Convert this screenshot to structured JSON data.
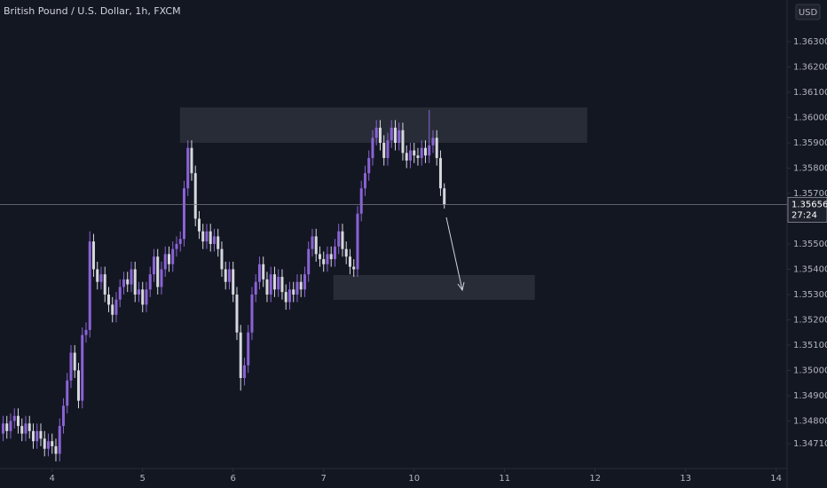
{
  "chart_data": {
    "type": "candlestick",
    "title": "British Pound / U.S. Dollar, 1h, FXCM",
    "currency": "USD",
    "countdown": "27:24",
    "last_price": 1.35656,
    "up_color": "#8b63d6",
    "down_color": "#d6d8de",
    "xlim": [
      -0.82,
      207.9
    ],
    "ylim": [
      1.34612,
      1.36465
    ],
    "xticks": [
      {
        "value": 13,
        "label": "4"
      },
      {
        "value": 37,
        "label": "5"
      },
      {
        "value": 61,
        "label": "6"
      },
      {
        "value": 85,
        "label": "7"
      },
      {
        "value": 109,
        "label": "10"
      },
      {
        "value": 133,
        "label": "11"
      },
      {
        "value": 157,
        "label": "12"
      },
      {
        "value": 181,
        "label": "13"
      },
      {
        "value": 205,
        "label": "14"
      }
    ],
    "yticks": [
      {
        "value": 1.363,
        "label": "1.36300"
      },
      {
        "value": 1.362,
        "label": "1.36200"
      },
      {
        "value": 1.361,
        "label": "1.36100"
      },
      {
        "value": 1.36,
        "label": "1.36000"
      },
      {
        "value": 1.359,
        "label": "1.35900"
      },
      {
        "value": 1.358,
        "label": "1.35800"
      },
      {
        "value": 1.357,
        "label": "1.35700"
      },
      {
        "value": 1.355,
        "label": "1.35500"
      },
      {
        "value": 1.354,
        "label": "1.35400"
      },
      {
        "value": 1.353,
        "label": "1.35300"
      },
      {
        "value": 1.352,
        "label": "1.35200"
      },
      {
        "value": 1.351,
        "label": "1.35100"
      },
      {
        "value": 1.35,
        "label": "1.35000"
      },
      {
        "value": 1.349,
        "label": "1.34900"
      },
      {
        "value": 1.348,
        "label": "1.34800"
      },
      {
        "value": 1.3471,
        "label": "1.34710"
      }
    ],
    "zones": [
      {
        "from": 46.9,
        "to": 154.9,
        "high": 1.3604,
        "low": 1.359
      },
      {
        "from": 87.6,
        "to": 141,
        "high": 1.35377,
        "low": 1.35279
      }
    ],
    "open": [
      1.3475,
      1.3479,
      1.3476,
      1.348,
      1.3482,
      1.3478,
      1.3475,
      1.3479,
      1.3476,
      1.3472,
      1.3476,
      1.3473,
      1.3469,
      1.3472,
      1.347,
      1.3467,
      1.3478,
      1.3486,
      1.3496,
      1.3507,
      1.35,
      1.3488,
      1.3514,
      1.3516,
      1.3551,
      1.354,
      1.3535,
      1.3538,
      1.353,
      1.3526,
      1.3522,
      1.3528,
      1.3533,
      1.3536,
      1.3534,
      1.354,
      1.353,
      1.3532,
      1.3526,
      1.3532,
      1.3538,
      1.3545,
      1.3533,
      1.354,
      1.3546,
      1.3542,
      1.3548,
      1.355,
      1.3552,
      1.3572,
      1.3588,
      1.3578,
      1.356,
      1.3555,
      1.3551,
      1.3555,
      1.355,
      1.3553,
      1.3548,
      1.354,
      1.3535,
      1.354,
      1.353,
      1.3515,
      1.3497,
      1.3502,
      1.3515,
      1.353,
      1.3535,
      1.3542,
      1.3536,
      1.353,
      1.3538,
      1.3532,
      1.3537,
      1.3531,
      1.3527,
      1.3532,
      1.353,
      1.3535,
      1.3532,
      1.3538,
      1.3548,
      1.3553,
      1.3546,
      1.3544,
      1.3542,
      1.3546,
      1.3544,
      1.3549,
      1.3555,
      1.3548,
      1.3545,
      1.3541,
      1.354,
      1.3562,
      1.3572,
      1.3578,
      1.3584,
      1.3592,
      1.3596,
      1.359,
      1.3584,
      1.3591,
      1.3596,
      1.359,
      1.3595,
      1.3586,
      1.3583,
      1.3587,
      1.3585,
      1.3584,
      1.3588,
      1.3585,
      1.3589,
      1.3592,
      1.3584,
      1.3572
    ],
    "high": [
      1.3482,
      1.3482,
      1.3483,
      1.3485,
      1.3485,
      1.3481,
      1.3482,
      1.3482,
      1.3479,
      1.3479,
      1.3479,
      1.3476,
      1.3475,
      1.3475,
      1.3473,
      1.3481,
      1.3489,
      1.3499,
      1.351,
      1.351,
      1.3503,
      1.3517,
      1.3519,
      1.3555,
      1.3554,
      1.3543,
      1.3541,
      1.3541,
      1.3533,
      1.3529,
      1.3531,
      1.3536,
      1.3539,
      1.3539,
      1.3543,
      1.3543,
      1.3535,
      1.3535,
      1.3535,
      1.3541,
      1.3548,
      1.3548,
      1.3543,
      1.3549,
      1.3549,
      1.3551,
      1.3553,
      1.3555,
      1.3575,
      1.3591,
      1.3591,
      1.3581,
      1.3563,
      1.3558,
      1.3558,
      1.3558,
      1.3556,
      1.3556,
      1.3551,
      1.3543,
      1.3543,
      1.3543,
      1.3533,
      1.3518,
      1.3505,
      1.3518,
      1.3533,
      1.3538,
      1.3545,
      1.3545,
      1.3539,
      1.3541,
      1.3541,
      1.354,
      1.354,
      1.3534,
      1.3535,
      1.3535,
      1.3538,
      1.3538,
      1.3541,
      1.3551,
      1.3556,
      1.3556,
      1.3549,
      1.3547,
      1.3549,
      1.3549,
      1.3552,
      1.3558,
      1.3558,
      1.3551,
      1.3548,
      1.3544,
      1.3565,
      1.3575,
      1.3581,
      1.3587,
      1.3595,
      1.3599,
      1.3599,
      1.3593,
      1.3594,
      1.3599,
      1.3599,
      1.3598,
      1.3598,
      1.3589,
      1.359,
      1.359,
      1.3588,
      1.3591,
      1.3591,
      1.3603,
      1.3595,
      1.3595,
      1.3587,
      1.3574
    ],
    "low": [
      1.3472,
      1.3473,
      1.3473,
      1.3477,
      1.3475,
      1.3472,
      1.3472,
      1.3473,
      1.3469,
      1.3469,
      1.347,
      1.3466,
      1.3466,
      1.3467,
      1.3464,
      1.3464,
      1.3475,
      1.3483,
      1.3493,
      1.3497,
      1.3485,
      1.3485,
      1.3511,
      1.3513,
      1.3537,
      1.3532,
      1.3532,
      1.3527,
      1.3523,
      1.3519,
      1.3519,
      1.3525,
      1.353,
      1.3531,
      1.3531,
      1.3527,
      1.3527,
      1.3523,
      1.3523,
      1.3529,
      1.3535,
      1.353,
      1.353,
      1.3537,
      1.3539,
      1.3539,
      1.3545,
      1.3547,
      1.3549,
      1.3569,
      1.3575,
      1.3557,
      1.3552,
      1.3548,
      1.3548,
      1.3547,
      1.3547,
      1.3545,
      1.3537,
      1.3532,
      1.3532,
      1.3527,
      1.3512,
      1.3492,
      1.3494,
      1.3499,
      1.3512,
      1.3527,
      1.3532,
      1.3533,
      1.3527,
      1.3527,
      1.3529,
      1.3529,
      1.3528,
      1.3524,
      1.3524,
      1.3527,
      1.3527,
      1.3529,
      1.3529,
      1.3535,
      1.3545,
      1.3543,
      1.3541,
      1.3539,
      1.3539,
      1.3541,
      1.3541,
      1.3546,
      1.3545,
      1.3542,
      1.3538,
      1.3537,
      1.3537,
      1.3559,
      1.3569,
      1.3575,
      1.3581,
      1.3589,
      1.3587,
      1.3581,
      1.3581,
      1.3588,
      1.3587,
      1.3587,
      1.3583,
      1.358,
      1.358,
      1.3582,
      1.3581,
      1.3581,
      1.3582,
      1.3582,
      1.3586,
      1.3581,
      1.3569,
      1.3564
    ],
    "close": [
      1.3479,
      1.3476,
      1.348,
      1.3482,
      1.3478,
      1.3475,
      1.3479,
      1.3476,
      1.3472,
      1.3476,
      1.3473,
      1.3469,
      1.3472,
      1.347,
      1.3467,
      1.3478,
      1.3486,
      1.3496,
      1.3507,
      1.35,
      1.3488,
      1.3514,
      1.3516,
      1.3551,
      1.354,
      1.3535,
      1.3538,
      1.353,
      1.3526,
      1.3522,
      1.3528,
      1.3533,
      1.3536,
      1.3534,
      1.354,
      1.353,
      1.3532,
      1.3526,
      1.3532,
      1.3538,
      1.3545,
      1.3533,
      1.354,
      1.3546,
      1.3542,
      1.3548,
      1.355,
      1.3552,
      1.3572,
      1.3588,
      1.3578,
      1.356,
      1.3555,
      1.3551,
      1.3555,
      1.355,
      1.3553,
      1.3548,
      1.354,
      1.3535,
      1.354,
      1.353,
      1.3515,
      1.3497,
      1.3502,
      1.3515,
      1.353,
      1.3535,
      1.3542,
      1.3536,
      1.353,
      1.3538,
      1.3532,
      1.3537,
      1.3531,
      1.3527,
      1.3532,
      1.353,
      1.3535,
      1.3532,
      1.3538,
      1.3548,
      1.3553,
      1.3546,
      1.3544,
      1.3542,
      1.3546,
      1.3544,
      1.3549,
      1.3555,
      1.3548,
      1.3545,
      1.3541,
      1.354,
      1.3562,
      1.3572,
      1.3578,
      1.3584,
      1.3592,
      1.3596,
      1.359,
      1.3584,
      1.3591,
      1.3596,
      1.359,
      1.3595,
      1.3586,
      1.3583,
      1.3587,
      1.3585,
      1.3584,
      1.3588,
      1.3585,
      1.3589,
      1.3592,
      1.3584,
      1.3572,
      1.35656
    ]
  }
}
